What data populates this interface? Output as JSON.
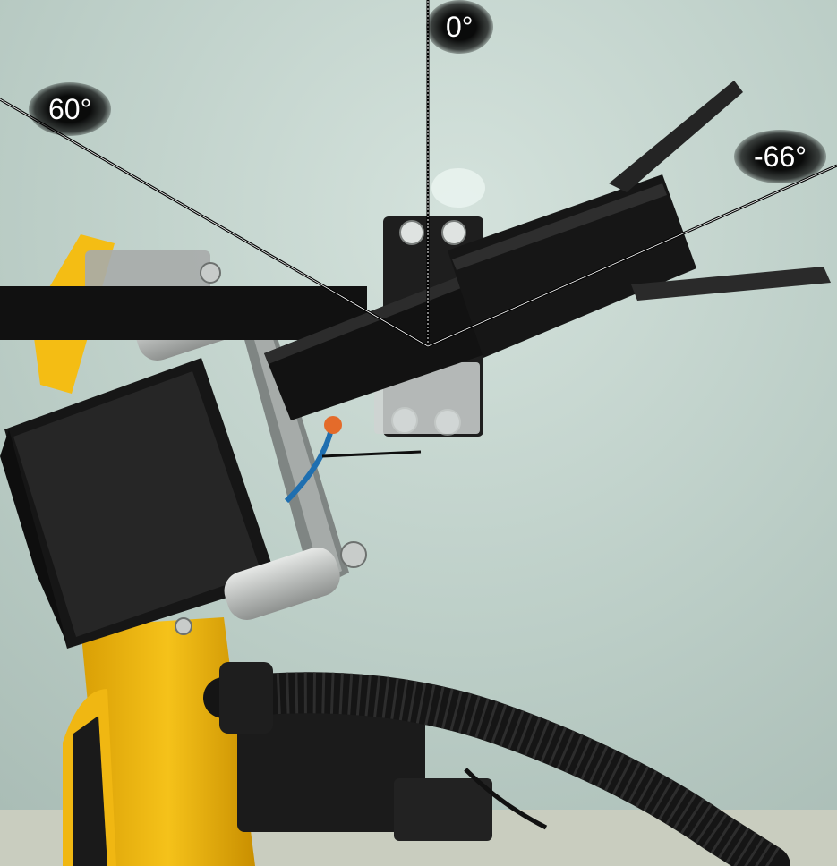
{
  "angle_labels": {
    "zero": "0°",
    "sixty": "60°",
    "minus_sixty_six": "-66°"
  },
  "colors": {
    "wall": "#b9ccc5",
    "arm_yellow": "#f2b90f",
    "servo_black": "#141414",
    "metal": "#bfc2c0",
    "reference_line": "#000000"
  }
}
